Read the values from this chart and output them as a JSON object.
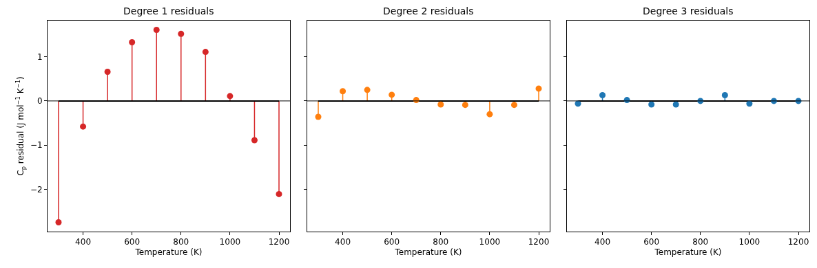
{
  "chart_data": [
    {
      "type": "lollipop",
      "title": "Degree 1 residuals",
      "xlabel": "Temperature (K)",
      "ylabel": "C$_{p}$ residual (J mol$^{−1}$ K$^{−1}$)",
      "x": [
        300,
        400,
        500,
        600,
        700,
        800,
        900,
        1000,
        1100,
        1200
      ],
      "series": [
        {
          "color": "#d62728",
          "values": [
            -2.75,
            -0.58,
            0.66,
            1.33,
            1.61,
            1.52,
            1.11,
            0.11,
            -0.89,
            -2.11
          ]
        }
      ],
      "xlim": [
        255,
        1245
      ],
      "xticks": [
        400,
        600,
        800,
        1000,
        1200
      ],
      "ylim": [
        -2.96,
        1.82
      ],
      "yticks": [
        -2,
        -1,
        0,
        1
      ],
      "marker": "circle",
      "ref_lines": [
        {
          "axis": "y",
          "value": 0,
          "color": "#000000"
        }
      ]
    },
    {
      "type": "lollipop",
      "title": "Degree 2 residuals",
      "xlabel": "Temperature (K)",
      "x": [
        300,
        400,
        500,
        600,
        700,
        800,
        900,
        1000,
        1100,
        1200
      ],
      "series": [
        {
          "color": "#ff7f0e",
          "values": [
            -0.36,
            0.22,
            0.25,
            0.14,
            0.02,
            -0.08,
            -0.09,
            -0.3,
            -0.09,
            0.28
          ]
        }
      ],
      "xlim": [
        255,
        1245
      ],
      "xticks": [
        400,
        600,
        800,
        1000,
        1200
      ],
      "ylim": [
        -2.96,
        1.82
      ],
      "yticks": [
        -2,
        -1,
        0,
        1
      ],
      "tick_labels": "x",
      "marker": "circle",
      "ref_lines": [
        {
          "axis": "y",
          "value": 0,
          "color": "#000000"
        }
      ]
    },
    {
      "type": "lollipop",
      "title": "Degree 3 residuals",
      "xlabel": "Temperature (K)",
      "x": [
        300,
        400,
        500,
        600,
        700,
        800,
        900,
        1000,
        1100,
        1200
      ],
      "series": [
        {
          "color": "#1f77b4",
          "values": [
            -0.06,
            0.13,
            0.02,
            -0.08,
            -0.08,
            0.0,
            0.13,
            -0.06,
            0.0,
            0.0
          ]
        }
      ],
      "xlim": [
        255,
        1245
      ],
      "xticks": [
        400,
        600,
        800,
        1000,
        1200
      ],
      "ylim": [
        -2.96,
        1.82
      ],
      "yticks": [
        -2,
        -1,
        0,
        1
      ],
      "tick_labels": "x",
      "marker": "circle",
      "ref_lines": [
        {
          "axis": "y",
          "value": 0,
          "color": "#000000"
        }
      ]
    }
  ]
}
